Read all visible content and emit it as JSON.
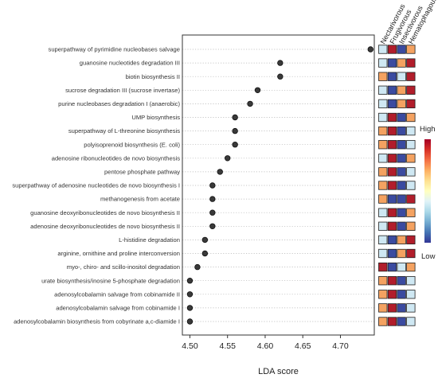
{
  "chart_data": {
    "type": "scatter",
    "title": "",
    "xlabel": "LDA score",
    "ylabel": "",
    "xlim": [
      4.49,
      4.745
    ],
    "xticks": [
      "4.50",
      "4.55",
      "4.60",
      "4.65",
      "4.70"
    ],
    "x_tick_values": [
      4.5,
      4.55,
      4.6,
      4.65,
      4.7
    ],
    "grid": "horizontal dotted",
    "pathways": [
      {
        "label": "superpathway of pyrimidine nucleobases salvage",
        "lda": 4.74,
        "heat": [
          "light",
          "red",
          "navy",
          "orange"
        ]
      },
      {
        "label": "guanosine nucleotides degradation III",
        "lda": 4.62,
        "heat": [
          "light",
          "navy",
          "orange",
          "red"
        ]
      },
      {
        "label": "biotin biosynthesis II",
        "lda": 4.62,
        "heat": [
          "orange",
          "navy",
          "light",
          "red"
        ]
      },
      {
        "label": "sucrose degradation III (sucrose invertase)",
        "lda": 4.59,
        "heat": [
          "light",
          "navy",
          "orange",
          "red"
        ]
      },
      {
        "label": "purine nucleobases degradation I (anaerobic)",
        "lda": 4.58,
        "heat": [
          "light",
          "navy",
          "orange",
          "red"
        ]
      },
      {
        "label": "UMP biosynthesis",
        "lda": 4.56,
        "heat": [
          "light",
          "red",
          "navy",
          "orange"
        ]
      },
      {
        "label": "superpathway of L-threonine biosynthesis",
        "lda": 4.56,
        "heat": [
          "orange",
          "red",
          "navy",
          "light"
        ]
      },
      {
        "label": "polyisoprenoid biosynthesis (E. coli)",
        "lda": 4.56,
        "heat": [
          "orange",
          "red",
          "navy",
          "light"
        ]
      },
      {
        "label": "adenosine ribonucleotides de novo biosynthesis",
        "lda": 4.55,
        "heat": [
          "light",
          "red",
          "navy",
          "orange"
        ]
      },
      {
        "label": "pentose phosphate pathway",
        "lda": 4.54,
        "heat": [
          "orange",
          "red",
          "navy",
          "light"
        ]
      },
      {
        "label": "superpathway of adenosine nucleotides de novo biosynthesis I",
        "lda": 4.53,
        "heat": [
          "orange",
          "red",
          "navy",
          "light"
        ]
      },
      {
        "label": "methanogenesis from acetate",
        "lda": 4.53,
        "heat": [
          "orange",
          "navy",
          "navy",
          "red"
        ]
      },
      {
        "label": "guanosine deoxyribonucleotides de novo biosynthesis II",
        "lda": 4.53,
        "heat": [
          "light",
          "red",
          "navy",
          "orange"
        ]
      },
      {
        "label": "adenosine deoxyribonucleotides de novo biosynthesis II",
        "lda": 4.53,
        "heat": [
          "light",
          "red",
          "navy",
          "orange"
        ]
      },
      {
        "label": "L-histidine degradation",
        "lda": 4.52,
        "heat": [
          "light",
          "navy",
          "orange",
          "red"
        ]
      },
      {
        "label": "arginine, ornithine and proline interconversion",
        "lda": 4.52,
        "heat": [
          "light",
          "navy",
          "orange",
          "red"
        ]
      },
      {
        "label": "myo-, chiro- and scillo-inositol degradation",
        "lda": 4.51,
        "heat": [
          "red",
          "navy",
          "light",
          "orange"
        ]
      },
      {
        "label": "urate biosynthesis/inosine 5-phosphate degradation",
        "lda": 4.5,
        "heat": [
          "orange",
          "red",
          "navy",
          "light"
        ]
      },
      {
        "label": "adenosylcobalamin salvage from cobinamide II",
        "lda": 4.5,
        "heat": [
          "orange",
          "red",
          "navy",
          "light"
        ]
      },
      {
        "label": "adenosylcobalamin salvage from cobinamide I",
        "lda": 4.5,
        "heat": [
          "orange",
          "red",
          "navy",
          "light"
        ]
      },
      {
        "label": "adenosylcobalamin biosynthesis from cobyrinate a,c-diamide I",
        "lda": 4.5,
        "heat": [
          "orange",
          "red",
          "navy",
          "light"
        ]
      }
    ],
    "heatmap_columns": [
      "Nectarivorous",
      "Frugivorous",
      "Insectivorous",
      "Hematophagous"
    ],
    "legend": {
      "high": "High",
      "low": "Low",
      "placement": "right"
    }
  },
  "colors": {
    "point": "#3a3a3a",
    "navy": "#3b4ba0",
    "light": "#cfe8f3",
    "orange": "#f4a261",
    "red": "#b11d2b",
    "gradient": [
      "#a50026",
      "#d73027",
      "#f46d43",
      "#fdae61",
      "#fee090",
      "#ffffbf",
      "#e0f3f8",
      "#abd9e9",
      "#74add1",
      "#4575b4",
      "#313695"
    ]
  }
}
